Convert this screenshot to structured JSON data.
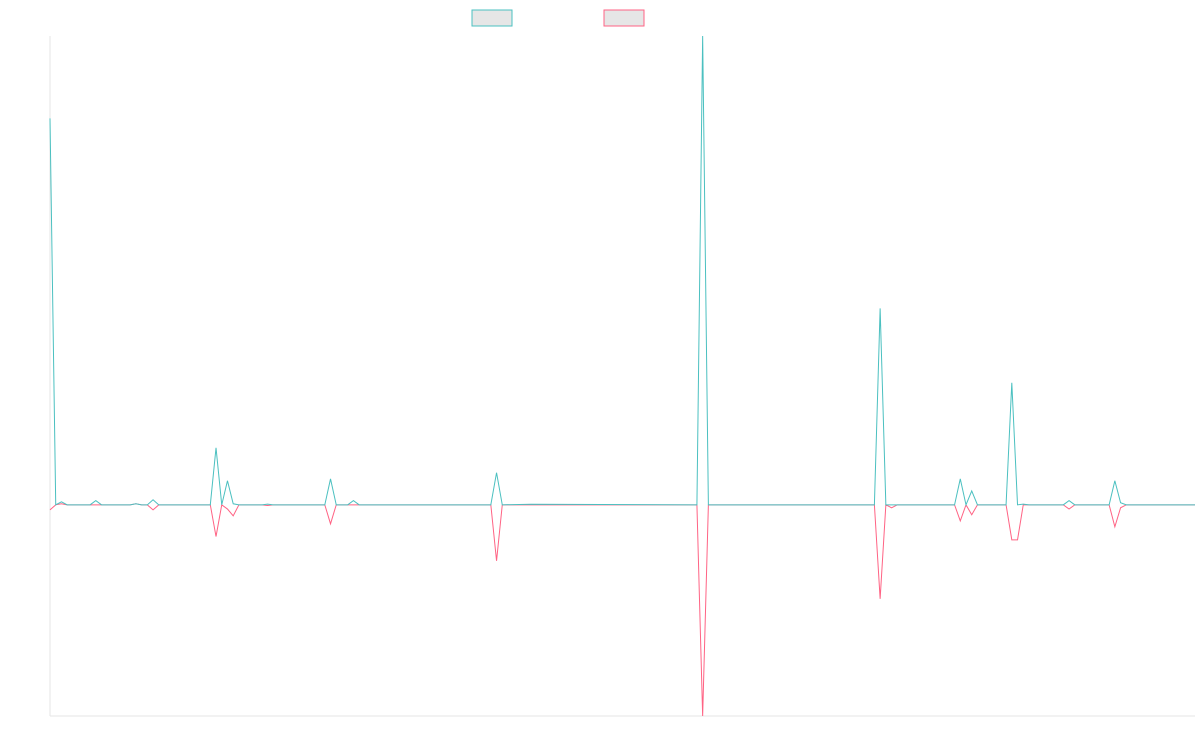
{
  "chart_data": {
    "type": "line",
    "x": [
      0,
      1,
      2,
      3,
      7,
      8,
      9,
      14,
      15,
      16,
      17,
      18,
      19,
      28,
      29,
      30,
      31,
      32,
      33,
      37,
      38,
      39,
      48,
      49,
      50,
      52,
      53,
      54,
      77,
      78,
      79,
      84,
      113,
      114,
      115,
      144,
      145,
      146,
      147,
      148,
      158,
      159,
      160,
      161,
      162,
      167,
      168,
      169,
      170,
      171,
      177,
      178,
      179,
      185,
      186,
      187,
      188,
      189,
      200
    ],
    "series": [
      {
        "color": "#4bc0c0",
        "values": [
          183,
          0,
          1.4,
          0,
          0,
          2,
          0,
          0,
          0.5,
          0,
          0,
          2.4,
          0,
          0,
          27,
          0,
          11.4,
          0.5,
          0,
          0,
          0.3,
          0,
          0,
          12.3,
          0,
          0,
          2,
          0,
          0,
          15.2,
          0,
          0.3,
          0,
          222,
          0,
          0,
          93,
          0,
          0,
          0,
          0,
          12.3,
          0,
          6.6,
          0,
          0,
          57.8,
          0,
          0.3,
          0,
          0,
          2,
          0,
          0,
          11.4,
          1,
          0,
          0,
          0
        ]
      },
      {
        "color": "#ff6384",
        "values": [
          -2.4,
          0,
          0.5,
          0,
          0,
          0,
          0,
          0,
          0.5,
          0,
          0,
          -2.4,
          0,
          0,
          -15,
          0,
          -2,
          -5.2,
          0,
          0,
          -0.3,
          0,
          0,
          -9,
          0,
          0,
          0,
          0,
          0,
          -26.5,
          0,
          0,
          0,
          -100,
          0,
          0,
          -44.5,
          0,
          -1.4,
          0,
          0,
          -7.6,
          0,
          -4.7,
          0,
          0,
          -16.6,
          -16.6,
          0,
          0,
          0,
          -2,
          0,
          0,
          -10.4,
          -1.4,
          0,
          0,
          0
        ]
      }
    ],
    "xlim": [
      0,
      200
    ],
    "ylim": [
      -100,
      222
    ],
    "legend": "top"
  }
}
